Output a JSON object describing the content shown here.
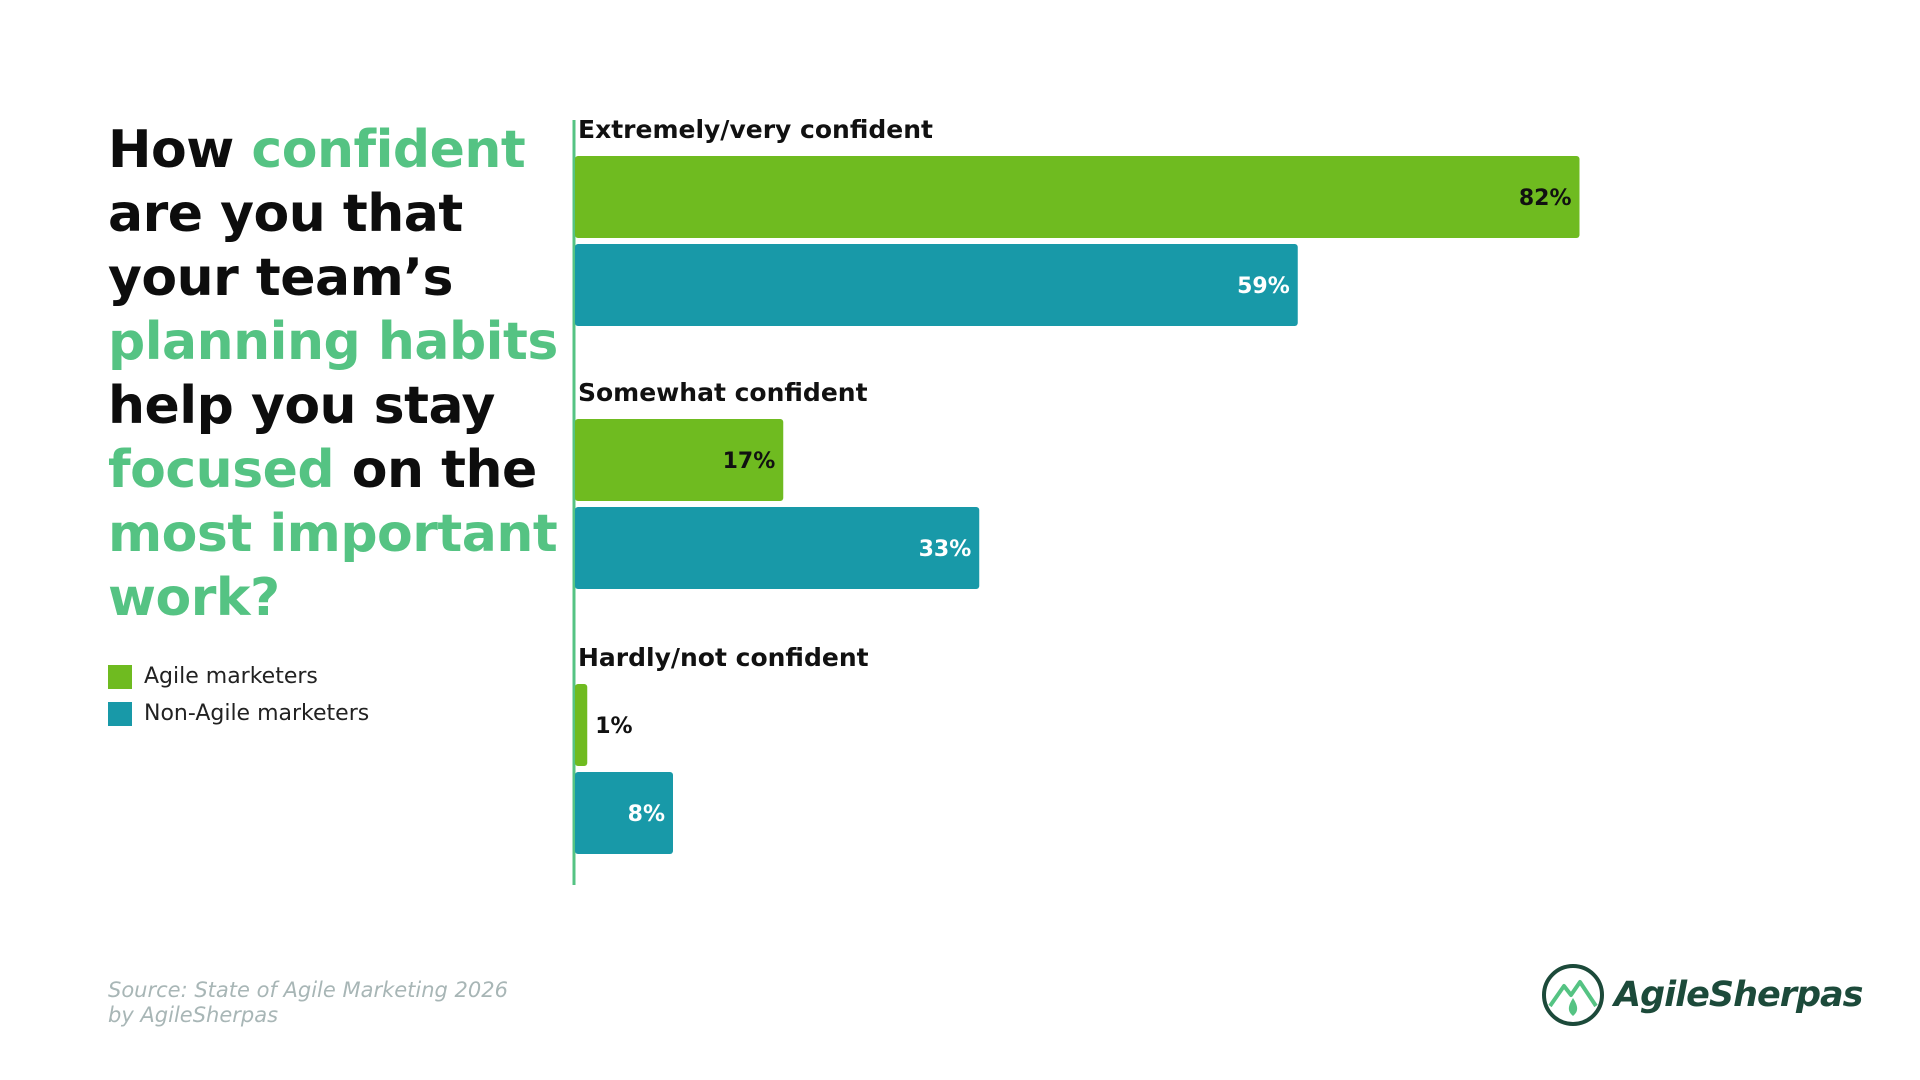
{
  "title": {
    "parts": [
      {
        "text": "How ",
        "highlight": false
      },
      {
        "text": "confident",
        "highlight": true
      },
      {
        "text": " are you that your team’s ",
        "highlight": false
      },
      {
        "text": "planning habits",
        "highlight": true
      },
      {
        "text": " help you stay ",
        "highlight": false
      },
      {
        "text": "focused",
        "highlight": true
      },
      {
        "text": " on the ",
        "highlight": false
      },
      {
        "text": "most important work?",
        "highlight": true
      }
    ]
  },
  "legend": [
    {
      "label": "Agile marketers",
      "color": "#6fbb20"
    },
    {
      "label": "Non-Agile marketers",
      "color": "#1899a8"
    }
  ],
  "source": {
    "line1": "Source: State of Agile Marketing 2026",
    "line2": "by AgileSherpas"
  },
  "logo": {
    "text": "AgileSherpas",
    "icon": "mountain-drop-icon"
  },
  "colors": {
    "accent": "#55c383",
    "agile": "#6fbb20",
    "non_agile": "#1899a8",
    "axis": "#55c383",
    "logo": "#1c4a3a"
  },
  "chart_data": {
    "type": "bar",
    "orientation": "horizontal",
    "title": "How confident are you that your team’s planning habits help you stay focused on the most important work?",
    "categories": [
      "Extremely/very confident",
      "Somewhat confident",
      "Hardly/not confident"
    ],
    "series": [
      {
        "name": "Agile marketers",
        "values": [
          82,
          17,
          1
        ],
        "labels": [
          "82%",
          "17%",
          "1%"
        ]
      },
      {
        "name": "Non-Agile marketers",
        "values": [
          59,
          33,
          8
        ],
        "labels": [
          "59%",
          "33%",
          "8%"
        ]
      }
    ],
    "xlim": [
      0,
      100
    ],
    "unit": "%",
    "grid": false,
    "legend_position": "left"
  }
}
